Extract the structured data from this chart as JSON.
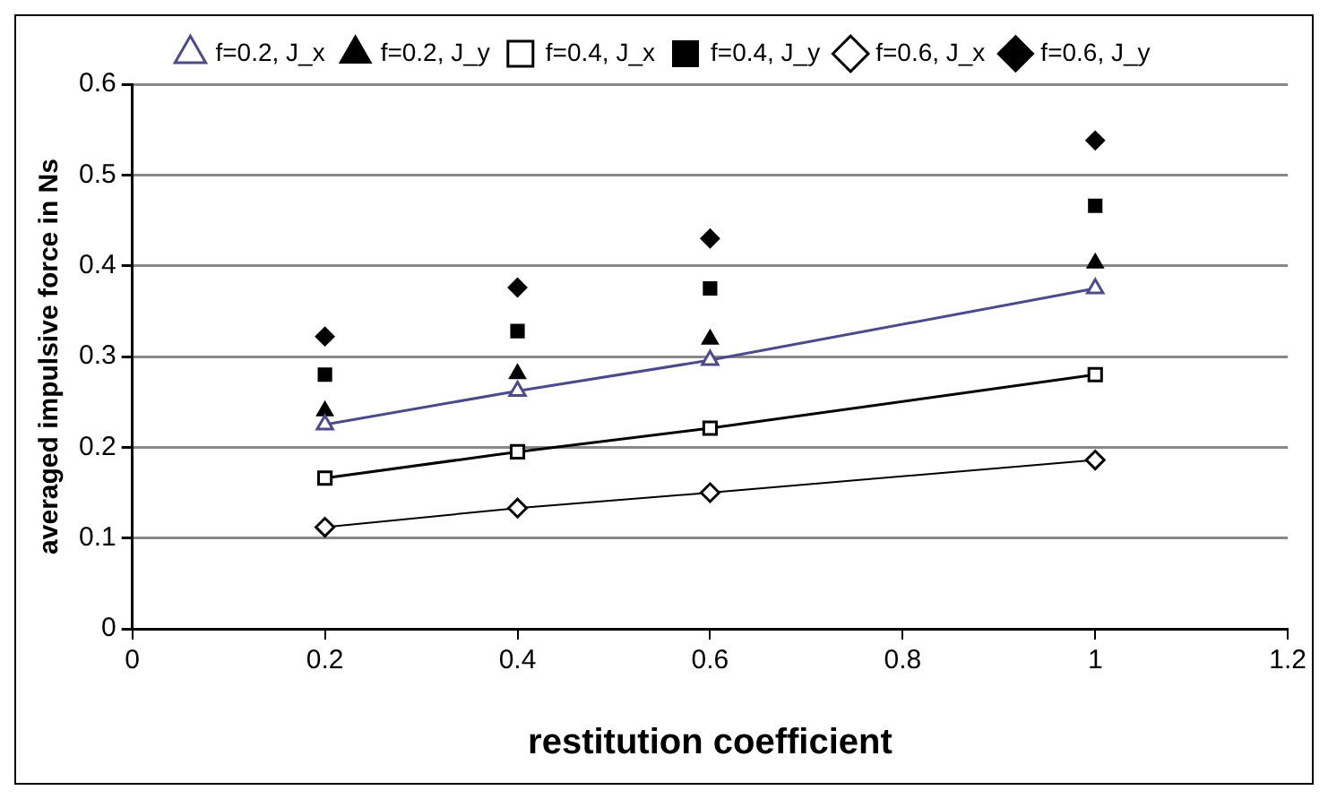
{
  "chart_data": {
    "type": "line",
    "xlabel": "restitution coefficient",
    "ylabel": "averaged impulsive force in Ns",
    "x": [
      0.2,
      0.4,
      0.6,
      1
    ],
    "series": [
      {
        "name": "f=0.2, J_x",
        "marker": "triangle",
        "color": "#4b4b8a",
        "values": [
          0.225,
          0.262,
          0.296,
          0.375
        ]
      },
      {
        "name": "f=0.2, J_y",
        "type": "scatter",
        "marker": "triangle",
        "color": "#000000",
        "values": [
          0.24,
          0.281,
          0.319,
          0.403
        ]
      },
      {
        "name": "f=0.4, J_x",
        "marker": "square",
        "color": "#000000",
        "values": [
          0.166,
          0.195,
          0.221,
          0.28
        ]
      },
      {
        "name": "f=0.4, J_y",
        "type": "scatter",
        "marker": "square",
        "color": "#000000",
        "values": [
          0.28,
          0.328,
          0.375,
          0.466
        ]
      },
      {
        "name": "f=0.6, J_x",
        "marker": "diamond",
        "color": "#000000",
        "values": [
          0.112,
          0.133,
          0.15,
          0.186
        ]
      },
      {
        "name": "f=0.6, J_y",
        "type": "scatter",
        "marker": "diamond",
        "color": "#000000",
        "values": [
          0.322,
          0.376,
          0.43,
          0.538
        ]
      }
    ],
    "xlim": [
      0,
      1.2
    ],
    "xticks": [
      0,
      0.2,
      0.4,
      0.6,
      0.8,
      1,
      1.2
    ],
    "ylim": [
      0,
      0.6
    ],
    "yticks": [
      0,
      0.1,
      0.2,
      0.3,
      0.4,
      0.5,
      0.6
    ],
    "grid": "y",
    "legend": "top"
  }
}
